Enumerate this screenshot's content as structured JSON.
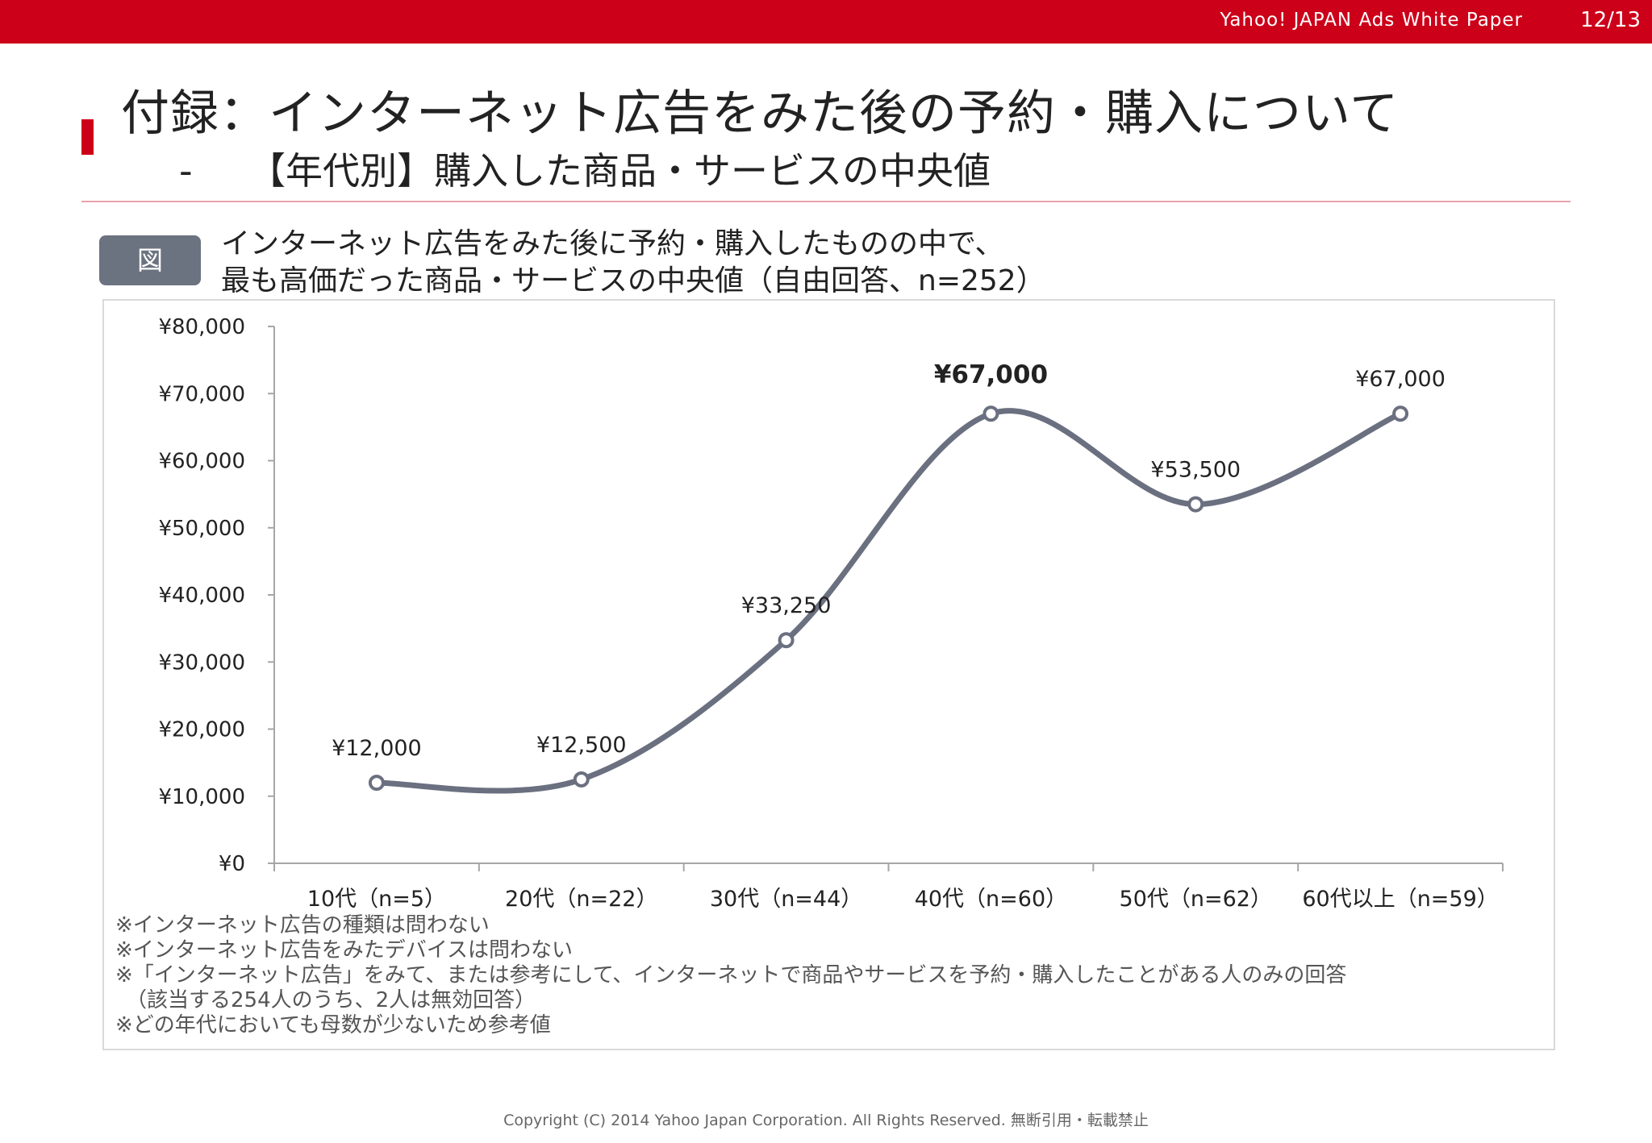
{
  "header": {
    "brand": "Yahoo!  JAPAN  Ads  White  Paper",
    "page": "12/13"
  },
  "title": "付録：インターネット広告をみた後の予約・購入について",
  "subtitle": {
    "dash": "-",
    "text": "【年代別】購入した商品・サービスの中央値"
  },
  "figure": {
    "badge": "図",
    "caption_line1": "インターネット広告をみた後に予約・購入したものの中で、",
    "caption_line2": "最も高価だった商品・サービスの中央値（自由回答、n=252）"
  },
  "chart_data": {
    "type": "line",
    "categories": [
      "10代（n=5）",
      "20代（n=22）",
      "30代（n=44）",
      "40代（n=60）",
      "50代（n=62）",
      "60代以上（n=59）"
    ],
    "values": [
      12000,
      12500,
      33250,
      67000,
      53500,
      67000
    ],
    "data_labels": [
      "¥12,000",
      "¥12,500",
      "¥33,250",
      "¥67,000",
      "¥53,500",
      "¥67,000"
    ],
    "emphasized_label_index": 3,
    "ylim": [
      0,
      80000
    ],
    "yticks": [
      0,
      10000,
      20000,
      30000,
      40000,
      50000,
      60000,
      70000,
      80000
    ],
    "ytick_labels": [
      "¥0",
      "¥10,000",
      "¥20,000",
      "¥30,000",
      "¥40,000",
      "¥50,000",
      "¥60,000",
      "¥70,000",
      "¥80,000"
    ],
    "smooth": true,
    "grid": false,
    "line_color": "#6b7080",
    "title": "",
    "xlabel": "",
    "ylabel": ""
  },
  "notes": [
    "※インターネット広告の種類は問わない",
    "※インターネット広告をみたデバイスは問わない",
    "※「インターネット広告」をみて、または参考にして、インターネットで商品やサービスを予約・購入したことがある人のみの回答",
    "　（該当する254人のうち、2人は無効回答）",
    "※どの年代においても母数が少ないため参考値"
  ],
  "footer": "Copyright (C) 2014 Yahoo Japan Corporation. All Rights Reserved. 無断引用・転載禁止"
}
